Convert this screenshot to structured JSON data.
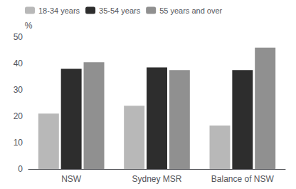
{
  "chart_data": {
    "type": "bar",
    "y_label": "%",
    "categories": [
      "NSW",
      "Sydney MSR",
      "Balance of NSW"
    ],
    "series": [
      {
        "name": "18-34 years",
        "color": "#b8b8b8",
        "values": [
          21,
          24,
          16.5
        ]
      },
      {
        "name": "35-54 years",
        "color": "#2d2d2d",
        "values": [
          38,
          38.5,
          37.5
        ]
      },
      {
        "name": "55 years and over",
        "color": "#909090",
        "values": [
          40.5,
          37.5,
          46
        ]
      }
    ],
    "ylim": [
      0,
      50
    ],
    "yticks": [
      0,
      10,
      20,
      30,
      40,
      50
    ],
    "grid": false,
    "legend": "upper left"
  }
}
